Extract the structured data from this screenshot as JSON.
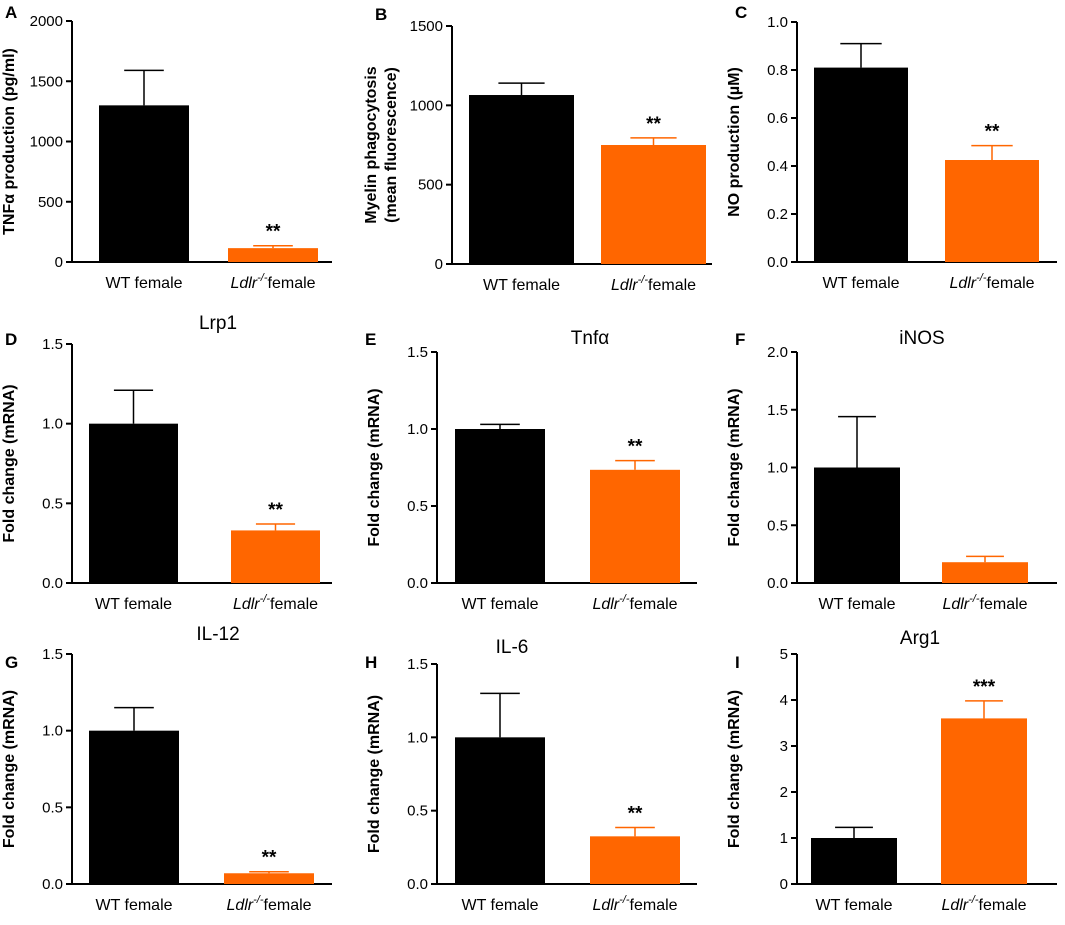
{
  "colors": {
    "wt": "#000000",
    "ldlr": "#ff6600",
    "axis": "#000000"
  },
  "categories": [
    {
      "name": "WT female",
      "italic_part": "",
      "sup": "",
      "rest": ""
    },
    {
      "name": "",
      "italic_part": "Ldlr",
      "sup": "-/-",
      "rest": "female"
    }
  ],
  "chart_data": [
    {
      "panel": "A",
      "type": "bar",
      "title": "",
      "ylabel": [
        "TNFα production (pg/ml)"
      ],
      "ylim": [
        0,
        2000
      ],
      "yticks": [
        0,
        500,
        1000,
        1500,
        2000
      ],
      "values": [
        1300,
        115
      ],
      "errors": [
        290,
        20
      ],
      "significance": [
        "",
        "**"
      ]
    },
    {
      "panel": "B",
      "type": "bar",
      "title": "",
      "ylabel": [
        "Myelin phagocytosis",
        "(mean fluorescence)"
      ],
      "ylim": [
        0,
        1500
      ],
      "yticks": [
        0,
        500,
        1000,
        1500
      ],
      "values": [
        1065,
        750
      ],
      "errors": [
        75,
        45
      ],
      "significance": [
        "",
        "**"
      ]
    },
    {
      "panel": "C",
      "type": "bar",
      "title": "",
      "ylabel": [
        "NO production (µM)"
      ],
      "ylim": [
        0,
        1.0
      ],
      "yticks": [
        0.0,
        0.2,
        0.4,
        0.6,
        0.8,
        1.0
      ],
      "values": [
        0.81,
        0.425
      ],
      "errors": [
        0.1,
        0.06
      ],
      "significance": [
        "",
        "**"
      ]
    },
    {
      "panel": "D",
      "type": "bar",
      "title": "Lrp1",
      "ylabel": [
        "Fold change (mRNA)"
      ],
      "ylim": [
        0,
        1.5
      ],
      "yticks": [
        0.0,
        0.5,
        1.0,
        1.5
      ],
      "values": [
        1.0,
        0.33
      ],
      "errors": [
        0.21,
        0.04
      ],
      "significance": [
        "",
        "**"
      ]
    },
    {
      "panel": "E",
      "type": "bar",
      "title": "Tnfα",
      "ylabel": [
        "Fold change (mRNA)"
      ],
      "ylim": [
        0,
        1.5
      ],
      "yticks": [
        0.0,
        0.5,
        1.0,
        1.5
      ],
      "values": [
        1.0,
        0.735
      ],
      "errors": [
        0.03,
        0.06
      ],
      "significance": [
        "",
        "**"
      ]
    },
    {
      "panel": "F",
      "type": "bar",
      "title": "iNOS",
      "ylabel": [
        "Fold change (mRNA)"
      ],
      "ylim": [
        0,
        2.0
      ],
      "yticks": [
        0.0,
        0.5,
        1.0,
        1.5,
        2.0
      ],
      "values": [
        1.0,
        0.18
      ],
      "errors": [
        0.44,
        0.05
      ],
      "significance": [
        "",
        ""
      ]
    },
    {
      "panel": "G",
      "type": "bar",
      "title": "IL-12",
      "ylabel": [
        "Fold change (mRNA)"
      ],
      "ylim": [
        0,
        1.5
      ],
      "yticks": [
        0.0,
        0.5,
        1.0,
        1.5
      ],
      "values": [
        1.0,
        0.07
      ],
      "errors": [
        0.15,
        0.01
      ],
      "significance": [
        "",
        "**"
      ]
    },
    {
      "panel": "H",
      "type": "bar",
      "title": "IL-6",
      "ylabel": [
        "Fold change (mRNA)"
      ],
      "ylim": [
        0,
        1.5
      ],
      "yticks": [
        0.0,
        0.5,
        1.0,
        1.5
      ],
      "values": [
        1.0,
        0.325
      ],
      "errors": [
        0.3,
        0.06
      ],
      "significance": [
        "",
        "**"
      ]
    },
    {
      "panel": "I",
      "type": "bar",
      "title": "Arg1",
      "ylabel": [
        "Fold change (mRNA)"
      ],
      "ylim": [
        0,
        5
      ],
      "yticks": [
        0,
        1,
        2,
        3,
        4,
        5
      ],
      "values": [
        1.0,
        3.6
      ],
      "errors": [
        0.23,
        0.38
      ],
      "significance": [
        "",
        "***"
      ]
    }
  ]
}
